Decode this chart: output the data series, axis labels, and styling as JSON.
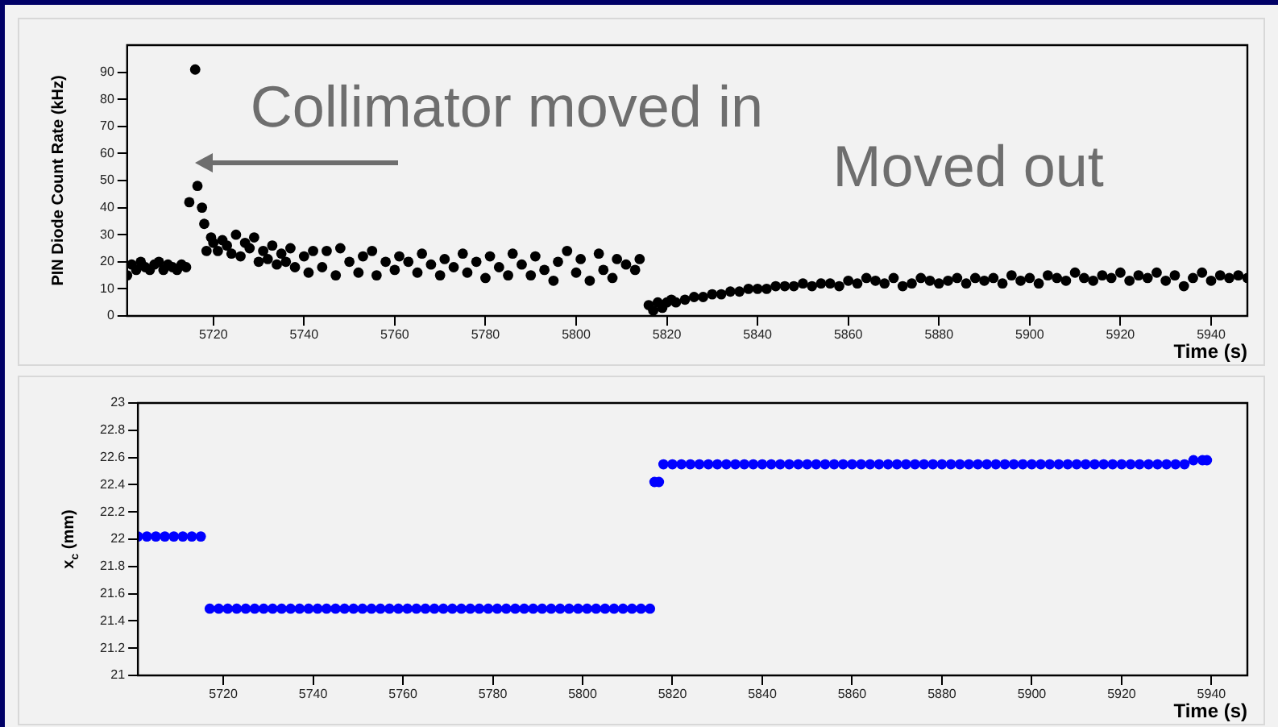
{
  "chart_data": [
    {
      "type": "scatter",
      "xlabel": "Time (s)",
      "ylabel": "PIN Diode Count Rate (kHz)",
      "xlim": [
        5701,
        5948
      ],
      "xticks": [
        5720,
        5740,
        5760,
        5780,
        5800,
        5820,
        5840,
        5860,
        5880,
        5900,
        5920,
        5940
      ],
      "ylim": [
        0,
        100
      ],
      "yticks": [
        0,
        10,
        20,
        30,
        40,
        50,
        60,
        70,
        80,
        90
      ],
      "grid": false,
      "legend": false,
      "marker": "circle",
      "annotations": [
        "Collimator moved in",
        "Moved out"
      ],
      "series": [
        {
          "color": "#000000",
          "x": [
            5701,
            5702,
            5703,
            5704,
            5705,
            5706,
            5707,
            5708,
            5709,
            5710,
            5711,
            5712,
            5713,
            5714,
            5714.7,
            5716,
            5716.5,
            5717.5,
            5718,
            5718.5,
            5719.5,
            5720,
            5721,
            5722,
            5723,
            5724,
            5725,
            5726,
            5727,
            5728,
            5729,
            5730,
            5731,
            5732,
            5733,
            5734,
            5735,
            5736,
            5737,
            5738,
            5740,
            5741,
            5742,
            5744,
            5745,
            5747,
            5748,
            5750,
            5752,
            5753,
            5755,
            5756,
            5758,
            5760,
            5761,
            5763,
            5765,
            5766,
            5768,
            5770,
            5771,
            5773,
            5775,
            5776,
            5778,
            5780,
            5781,
            5783,
            5785,
            5786,
            5788,
            5790,
            5791,
            5793,
            5795,
            5796,
            5798,
            5800,
            5801,
            5803,
            5805,
            5806,
            5808,
            5809,
            5811,
            5813,
            5814,
            5816,
            5817,
            5818,
            5819,
            5820,
            5821,
            5822,
            5824,
            5826,
            5828,
            5830,
            5832,
            5834,
            5836,
            5838,
            5840,
            5842,
            5844,
            5846,
            5848,
            5850,
            5852,
            5854,
            5856,
            5858,
            5860,
            5862,
            5864,
            5866,
            5868,
            5870,
            5872,
            5874,
            5876,
            5878,
            5880,
            5882,
            5884,
            5886,
            5888,
            5890,
            5892,
            5894,
            5896,
            5898,
            5900,
            5902,
            5904,
            5906,
            5908,
            5910,
            5912,
            5914,
            5916,
            5918,
            5920,
            5922,
            5924,
            5926,
            5928,
            5930,
            5932,
            5934,
            5936,
            5938,
            5940,
            5942,
            5944,
            5946,
            5948
          ],
          "values": [
            15,
            19,
            17,
            20,
            18,
            17,
            19,
            20,
            17,
            19,
            18,
            17,
            19,
            18,
            42,
            91,
            48,
            40,
            34,
            24,
            29,
            27,
            24,
            28,
            26,
            23,
            30,
            22,
            27,
            25,
            29,
            20,
            24,
            21,
            26,
            19,
            23,
            20,
            25,
            18,
            22,
            16,
            24,
            18,
            24,
            15,
            25,
            20,
            16,
            22,
            24,
            15,
            20,
            17,
            22,
            20,
            16,
            23,
            19,
            15,
            21,
            18,
            23,
            16,
            20,
            14,
            22,
            18,
            15,
            23,
            19,
            15,
            22,
            17,
            13,
            20,
            24,
            16,
            21,
            13,
            23,
            17,
            14,
            21,
            19,
            17,
            21,
            4,
            2,
            5,
            3,
            5,
            6,
            5,
            6,
            7,
            7,
            8,
            8,
            9,
            9,
            10,
            10,
            10,
            11,
            11,
            11,
            12,
            11,
            12,
            12,
            11,
            13,
            12,
            14,
            13,
            12,
            14,
            11,
            12,
            14,
            13,
            12,
            13,
            14,
            12,
            14,
            13,
            14,
            12,
            15,
            13,
            14,
            12,
            15,
            14,
            13,
            16,
            14,
            13,
            15,
            14,
            16,
            13,
            15,
            14,
            16,
            13,
            15,
            11,
            14,
            16,
            13,
            15,
            14,
            15,
            14
          ]
        }
      ]
    },
    {
      "type": "scatter",
      "xlabel": "Time (s)",
      "ylabel": "x$_{c}$ (mm)",
      "xlim": [
        5701,
        5948
      ],
      "xticks": [
        5720,
        5740,
        5760,
        5780,
        5800,
        5820,
        5840,
        5860,
        5880,
        5900,
        5920,
        5940
      ],
      "ylim": [
        21,
        23
      ],
      "yticks": [
        21,
        21.2,
        21.4,
        21.6,
        21.8,
        22,
        22.2,
        22.4,
        22.6,
        22.8,
        23
      ],
      "grid": false,
      "legend": false,
      "marker": "circle",
      "series": [
        {
          "color": "#0000ff",
          "x": [
            5701,
            5703,
            5705,
            5707,
            5709,
            5711,
            5713,
            5715,
            5717,
            5719,
            5721,
            5723,
            5725,
            5727,
            5729,
            5731,
            5733,
            5735,
            5737,
            5739,
            5741,
            5743,
            5745,
            5747,
            5749,
            5751,
            5753,
            5755,
            5757,
            5759,
            5761,
            5763,
            5765,
            5767,
            5769,
            5771,
            5773,
            5775,
            5777,
            5779,
            5781,
            5783,
            5785,
            5787,
            5789,
            5791,
            5793,
            5795,
            5797,
            5799,
            5801,
            5803,
            5805,
            5807,
            5809,
            5811,
            5813,
            5815,
            5816,
            5817,
            5818,
            5820,
            5822,
            5824,
            5826,
            5828,
            5830,
            5832,
            5834,
            5836,
            5838,
            5840,
            5842,
            5844,
            5846,
            5848,
            5850,
            5852,
            5854,
            5856,
            5858,
            5860,
            5862,
            5864,
            5866,
            5868,
            5870,
            5872,
            5874,
            5876,
            5878,
            5880,
            5882,
            5884,
            5886,
            5888,
            5890,
            5892,
            5894,
            5896,
            5898,
            5900,
            5902,
            5904,
            5906,
            5908,
            5910,
            5912,
            5914,
            5916,
            5918,
            5920,
            5922,
            5924,
            5926,
            5928,
            5930,
            5932,
            5934,
            5936,
            5938,
            5939
          ],
          "values": [
            22.02,
            22.02,
            22.02,
            22.02,
            22.02,
            22.02,
            22.02,
            22.02,
            21.49,
            21.49,
            21.49,
            21.49,
            21.49,
            21.49,
            21.49,
            21.49,
            21.49,
            21.49,
            21.49,
            21.49,
            21.49,
            21.49,
            21.49,
            21.49,
            21.49,
            21.49,
            21.49,
            21.49,
            21.49,
            21.49,
            21.49,
            21.49,
            21.49,
            21.49,
            21.49,
            21.49,
            21.49,
            21.49,
            21.49,
            21.49,
            21.49,
            21.49,
            21.49,
            21.49,
            21.49,
            21.49,
            21.49,
            21.49,
            21.49,
            21.49,
            21.49,
            21.49,
            21.49,
            21.49,
            21.49,
            21.49,
            21.49,
            21.49,
            22.42,
            22.42,
            22.55,
            22.55,
            22.55,
            22.55,
            22.55,
            22.55,
            22.55,
            22.55,
            22.55,
            22.55,
            22.55,
            22.55,
            22.55,
            22.55,
            22.55,
            22.55,
            22.55,
            22.55,
            22.55,
            22.55,
            22.55,
            22.55,
            22.55,
            22.55,
            22.55,
            22.55,
            22.55,
            22.55,
            22.55,
            22.55,
            22.55,
            22.55,
            22.55,
            22.55,
            22.55,
            22.55,
            22.55,
            22.55,
            22.55,
            22.55,
            22.55,
            22.55,
            22.55,
            22.55,
            22.55,
            22.55,
            22.55,
            22.55,
            22.55,
            22.55,
            22.55,
            22.55,
            22.55,
            22.55,
            22.55,
            22.55,
            22.55,
            22.55,
            22.55,
            22.58,
            22.58,
            22.58
          ]
        }
      ]
    }
  ]
}
